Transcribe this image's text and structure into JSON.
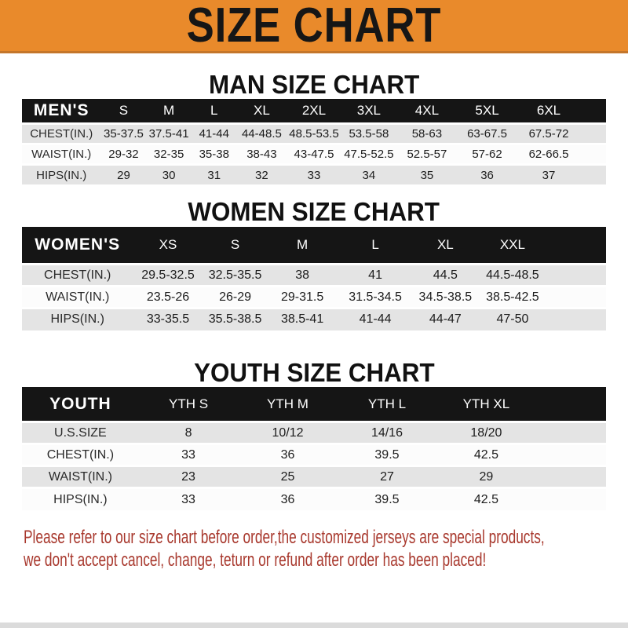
{
  "banner": {
    "title": "SIZE CHART",
    "bg_color": "#E98A2B",
    "text_color": "#161616"
  },
  "sections": [
    {
      "heading": "MAN SIZE CHART",
      "table": {
        "label": "MEN'S",
        "columns": [
          "S",
          "M",
          "L",
          "XL",
          "2XL",
          "3XL",
          "4XL",
          "5XL",
          "6XL"
        ],
        "rows": [
          {
            "label": "CHEST(IN.)",
            "values": [
              "35-37.5",
              "37.5-41",
              "41-44",
              "44-48.5",
              "48.5-53.5",
              "53.5-58",
              "58-63",
              "63-67.5",
              "67.5-72"
            ]
          },
          {
            "label": "WAIST(IN.)",
            "values": [
              "29-32",
              "32-35",
              "35-38",
              "38-43",
              "43-47.5",
              "47.5-52.5",
              "52.5-57",
              "57-62",
              "62-66.5"
            ]
          },
          {
            "label": "HIPS(IN.)",
            "values": [
              "29",
              "30",
              "31",
              "32",
              "33",
              "34",
              "35",
              "36",
              "37"
            ]
          }
        ]
      }
    },
    {
      "heading": "WOMEN SIZE CHART",
      "table": {
        "label": "WOMEN'S",
        "columns": [
          "XS",
          "S",
          "M",
          "L",
          "XL",
          "XXL"
        ],
        "rows": [
          {
            "label": "CHEST(IN.)",
            "values": [
              "29.5-32.5",
              "32.5-35.5",
              "38",
              "41",
              "44.5",
              "44.5-48.5"
            ]
          },
          {
            "label": "WAIST(IN.)",
            "values": [
              "23.5-26",
              "26-29",
              "29-31.5",
              "31.5-34.5",
              "34.5-38.5",
              "38.5-42.5"
            ]
          },
          {
            "label": "HIPS(IN.)",
            "values": [
              "33-35.5",
              "35.5-38.5",
              "38.5-41",
              "41-44",
              "44-47",
              "47-50"
            ]
          }
        ]
      }
    },
    {
      "heading": "YOUTH SIZE CHART",
      "table": {
        "label": "YOUTH",
        "columns": [
          "YTH S",
          "YTH M",
          "YTH L",
          "YTH XL"
        ],
        "rows": [
          {
            "label": "U.S.SIZE",
            "values": [
              "8",
              "10/12",
              "14/16",
              "18/20"
            ]
          },
          {
            "label": "CHEST(IN.)",
            "values": [
              "33",
              "36",
              "39.5",
              "42.5"
            ]
          },
          {
            "label": "WAIST(IN.)",
            "values": [
              "23",
              "25",
              "27",
              "29"
            ]
          },
          {
            "label": "HIPS(IN.)",
            "values": [
              "33",
              "36",
              "39.5",
              "42.5"
            ]
          }
        ]
      }
    }
  ],
  "footer": {
    "lines": [
      "Please refer to our size chart before order,the customized jerseys are special products,",
      "we don't accept cancel, change, teturn or refund after order has been placed!"
    ],
    "text_color": "#A8382D"
  },
  "colors": {
    "header_bar": "#151515",
    "row_gray": "#E4E4E4"
  }
}
